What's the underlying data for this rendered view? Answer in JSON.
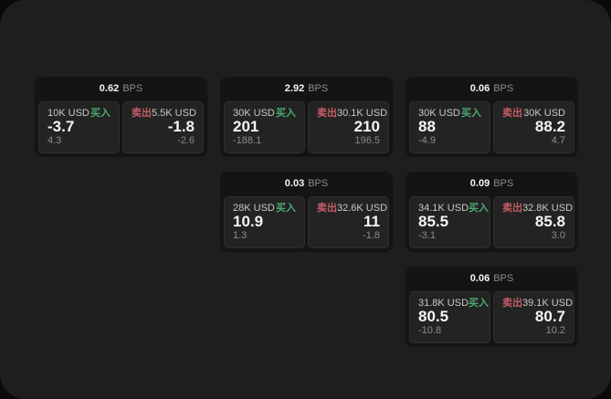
{
  "colors": {
    "outer_bg": "#0a0a0a",
    "panel_bg": "#1e1e1e",
    "card_bg": "#141414",
    "cell_bg": "#232323",
    "cell_border": "#2e2e2e",
    "buy_green": "#4aa96e",
    "sell_red": "#c35d66",
    "value_white": "#f5f5f5",
    "label_gray": "#c9c9c9",
    "muted_gray": "#8c8c8c"
  },
  "cards": [
    {
      "grid": {
        "row": 1,
        "col": 1
      },
      "bps_value": "0.62",
      "bps_unit": "BPS",
      "buy": {
        "amount": "10K USD",
        "tag": "买入",
        "value": "-3.7",
        "sub": "4.3"
      },
      "sell": {
        "tag": "卖出",
        "amount": "5.5K USD",
        "value": "-1.8",
        "sub": "-2.6"
      }
    },
    {
      "grid": {
        "row": 1,
        "col": 2
      },
      "bps_value": "2.92",
      "bps_unit": "BPS",
      "buy": {
        "amount": "30K USD",
        "tag": "买入",
        "value": "201",
        "sub": "-188.1"
      },
      "sell": {
        "tag": "卖出",
        "amount": "30.1K USD",
        "value": "210",
        "sub": "196.5"
      }
    },
    {
      "grid": {
        "row": 1,
        "col": 3
      },
      "bps_value": "0.06",
      "bps_unit": "BPS",
      "buy": {
        "amount": "30K USD",
        "tag": "买入",
        "value": "88",
        "sub": "-4.9"
      },
      "sell": {
        "tag": "卖出",
        "amount": "30K USD",
        "value": "88.2",
        "sub": "4.7"
      }
    },
    {
      "grid": {
        "row": 2,
        "col": 2
      },
      "bps_value": "0.03",
      "bps_unit": "BPS",
      "buy": {
        "amount": "28K USD",
        "tag": "买入",
        "value": "10.9",
        "sub": "1.3"
      },
      "sell": {
        "tag": "卖出",
        "amount": "32.6K USD",
        "value": "11",
        "sub": "-1.8"
      }
    },
    {
      "grid": {
        "row": 2,
        "col": 3
      },
      "bps_value": "0.09",
      "bps_unit": "BPS",
      "buy": {
        "amount": "34.1K USD",
        "tag": "买入",
        "value": "85.5",
        "sub": "-3.1"
      },
      "sell": {
        "tag": "卖出",
        "amount": "32.8K USD",
        "value": "85.8",
        "sub": "3.0"
      }
    },
    {
      "grid": {
        "row": 3,
        "col": 3
      },
      "bps_value": "0.06",
      "bps_unit": "BPS",
      "buy": {
        "amount": "31.8K USD",
        "tag": "买入",
        "value": "80.5",
        "sub": "-10.8"
      },
      "sell": {
        "tag": "卖出",
        "amount": "39.1K USD",
        "value": "80.7",
        "sub": "10.2"
      }
    }
  ]
}
